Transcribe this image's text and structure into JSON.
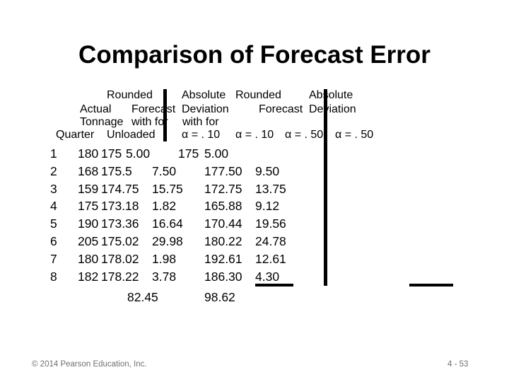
{
  "title": "Comparison of Forecast Error",
  "header": {
    "c1": "Rounded",
    "c2": "Absolute",
    "c3": "Rounded",
    "c4": "Absolute",
    "actual": "Actual",
    "forecast1": "Forecast",
    "deviation1": "Deviation",
    "forecast2": "Forecast",
    "deviation2": "Deviation",
    "tonnage": "Tonnage",
    "with1": "with for",
    "with2": "with for",
    "quarter": "Quarter",
    "unloaded": "Unloaded",
    "alpha1": "α = . 10",
    "alpha2": "α = . 10",
    "alpha3": "α = . 50",
    "alpha4": "α = . 50"
  },
  "quarters": [
    "1",
    "2",
    "3",
    "4",
    "5",
    "6",
    "7",
    "8"
  ],
  "actual": [
    "180",
    "168",
    "159",
    "175",
    "190",
    "205",
    "180",
    "182"
  ],
  "forecast_a10": [
    "175",
    "175.5",
    "174.75",
    "173.18",
    "173.36",
    "175.02",
    "178.02",
    "178.22"
  ],
  "deviation_a10": [
    "5.00",
    "7.50",
    "15.75",
    "1.82",
    "16.64",
    "29.98",
    "1.98",
    "3.78"
  ],
  "forecast_a50": [
    "175",
    "177.50",
    "172.75",
    "165.88",
    "170.44",
    "180.22",
    "192.61",
    "186.30"
  ],
  "deviation_a50": [
    "5.00",
    "9.50",
    "13.75",
    "9.12",
    "19.56",
    "24.78",
    "12.61",
    "4.30"
  ],
  "totals": {
    "a10": "82.45",
    "a50": "98.62"
  },
  "footer": {
    "copyright": "© 2014 Pearson Education, Inc.",
    "page": "4 - 53"
  }
}
